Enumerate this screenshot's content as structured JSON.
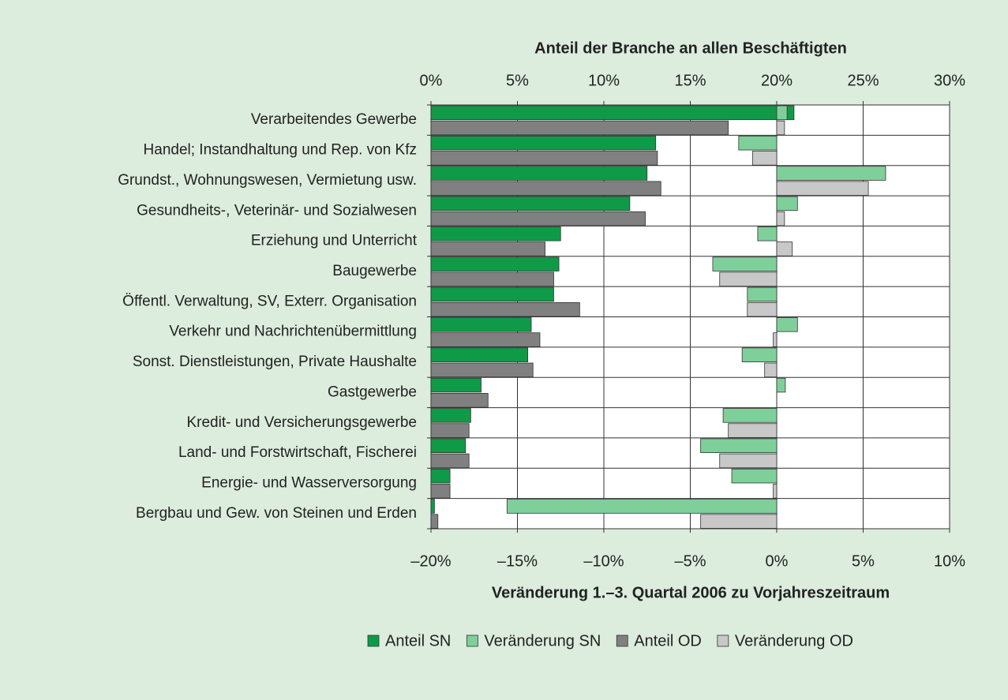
{
  "chart_data": {
    "type": "bar",
    "orientation": "horizontal",
    "xlabel": "Anteil der Branche an allen Beschäftigten",
    "x2label": "Veränderung 1.–3. Quartal 2006 zu Vorjahreszeitraum",
    "categories": [
      "Verarbeitendes Gewerbe",
      "Handel; Instandhaltung und Rep. von Kfz",
      "Grundst., Wohnungswesen, Vermietung usw.",
      "Gesundheits-, Veterinär- und Sozialwesen",
      "Erziehung und Unterricht",
      "Baugewerbe",
      "Öffentl. Verwaltung, SV, Exterr. Organisation",
      "Verkehr und Nachrichtenübermittlung",
      "Sonst. Dienstleistungen, Private Haushalte",
      "Gastgewerbe",
      "Kredit- und Versicherungsgewerbe",
      "Land- und Forstwirtschaft, Fischerei",
      "Energie- und Wasserversorgung",
      "Bergbau und Gew. von Steinen und Erden"
    ],
    "series": [
      {
        "name": "Anteil SN",
        "color": "#0f9a48",
        "axis": "x",
        "values": [
          21.0,
          13.0,
          12.5,
          11.5,
          7.5,
          7.4,
          7.1,
          5.8,
          5.6,
          2.9,
          2.3,
          2.0,
          1.1,
          0.2
        ]
      },
      {
        "name": "Veränderung SN",
        "color": "#7fcf9a",
        "axis": "x2",
        "values": [
          0.6,
          -2.2,
          6.3,
          1.2,
          -1.1,
          -3.7,
          -1.7,
          1.2,
          -2.0,
          0.5,
          -3.1,
          -4.4,
          -2.6,
          -15.6
        ]
      },
      {
        "name": "Anteil OD",
        "color": "#808080",
        "axis": "x",
        "values": [
          17.2,
          13.1,
          13.3,
          12.4,
          6.6,
          7.1,
          8.6,
          6.3,
          5.9,
          3.3,
          2.2,
          2.2,
          1.1,
          0.4
        ]
      },
      {
        "name": "Veränderung OD",
        "color": "#c8c8c8",
        "axis": "x2",
        "values": [
          0.45,
          -1.4,
          5.3,
          0.45,
          0.9,
          -3.3,
          -1.7,
          -0.2,
          -0.7,
          0.0,
          -2.8,
          -3.3,
          -0.2,
          -4.4
        ]
      }
    ],
    "xlim": [
      0,
      30
    ],
    "xticks": [
      {
        "value": 0,
        "label": "0%"
      },
      {
        "value": 5,
        "label": "5%"
      },
      {
        "value": 10,
        "label": "10%"
      },
      {
        "value": 15,
        "label": "15%"
      },
      {
        "value": 20,
        "label": "20%"
      },
      {
        "value": 25,
        "label": "25%"
      },
      {
        "value": 30,
        "label": "30%"
      }
    ],
    "x2lim": [
      -20,
      10
    ],
    "x2ticks": [
      {
        "value": -20,
        "label": "–20%"
      },
      {
        "value": -15,
        "label": "–15%"
      },
      {
        "value": -10,
        "label": "–10%"
      },
      {
        "value": -5,
        "label": "–5%"
      },
      {
        "value": 0,
        "label": "0%"
      },
      {
        "value": 5,
        "label": "5%"
      },
      {
        "value": 10,
        "label": "10%"
      }
    ],
    "grid": true,
    "legend": "bottom"
  }
}
